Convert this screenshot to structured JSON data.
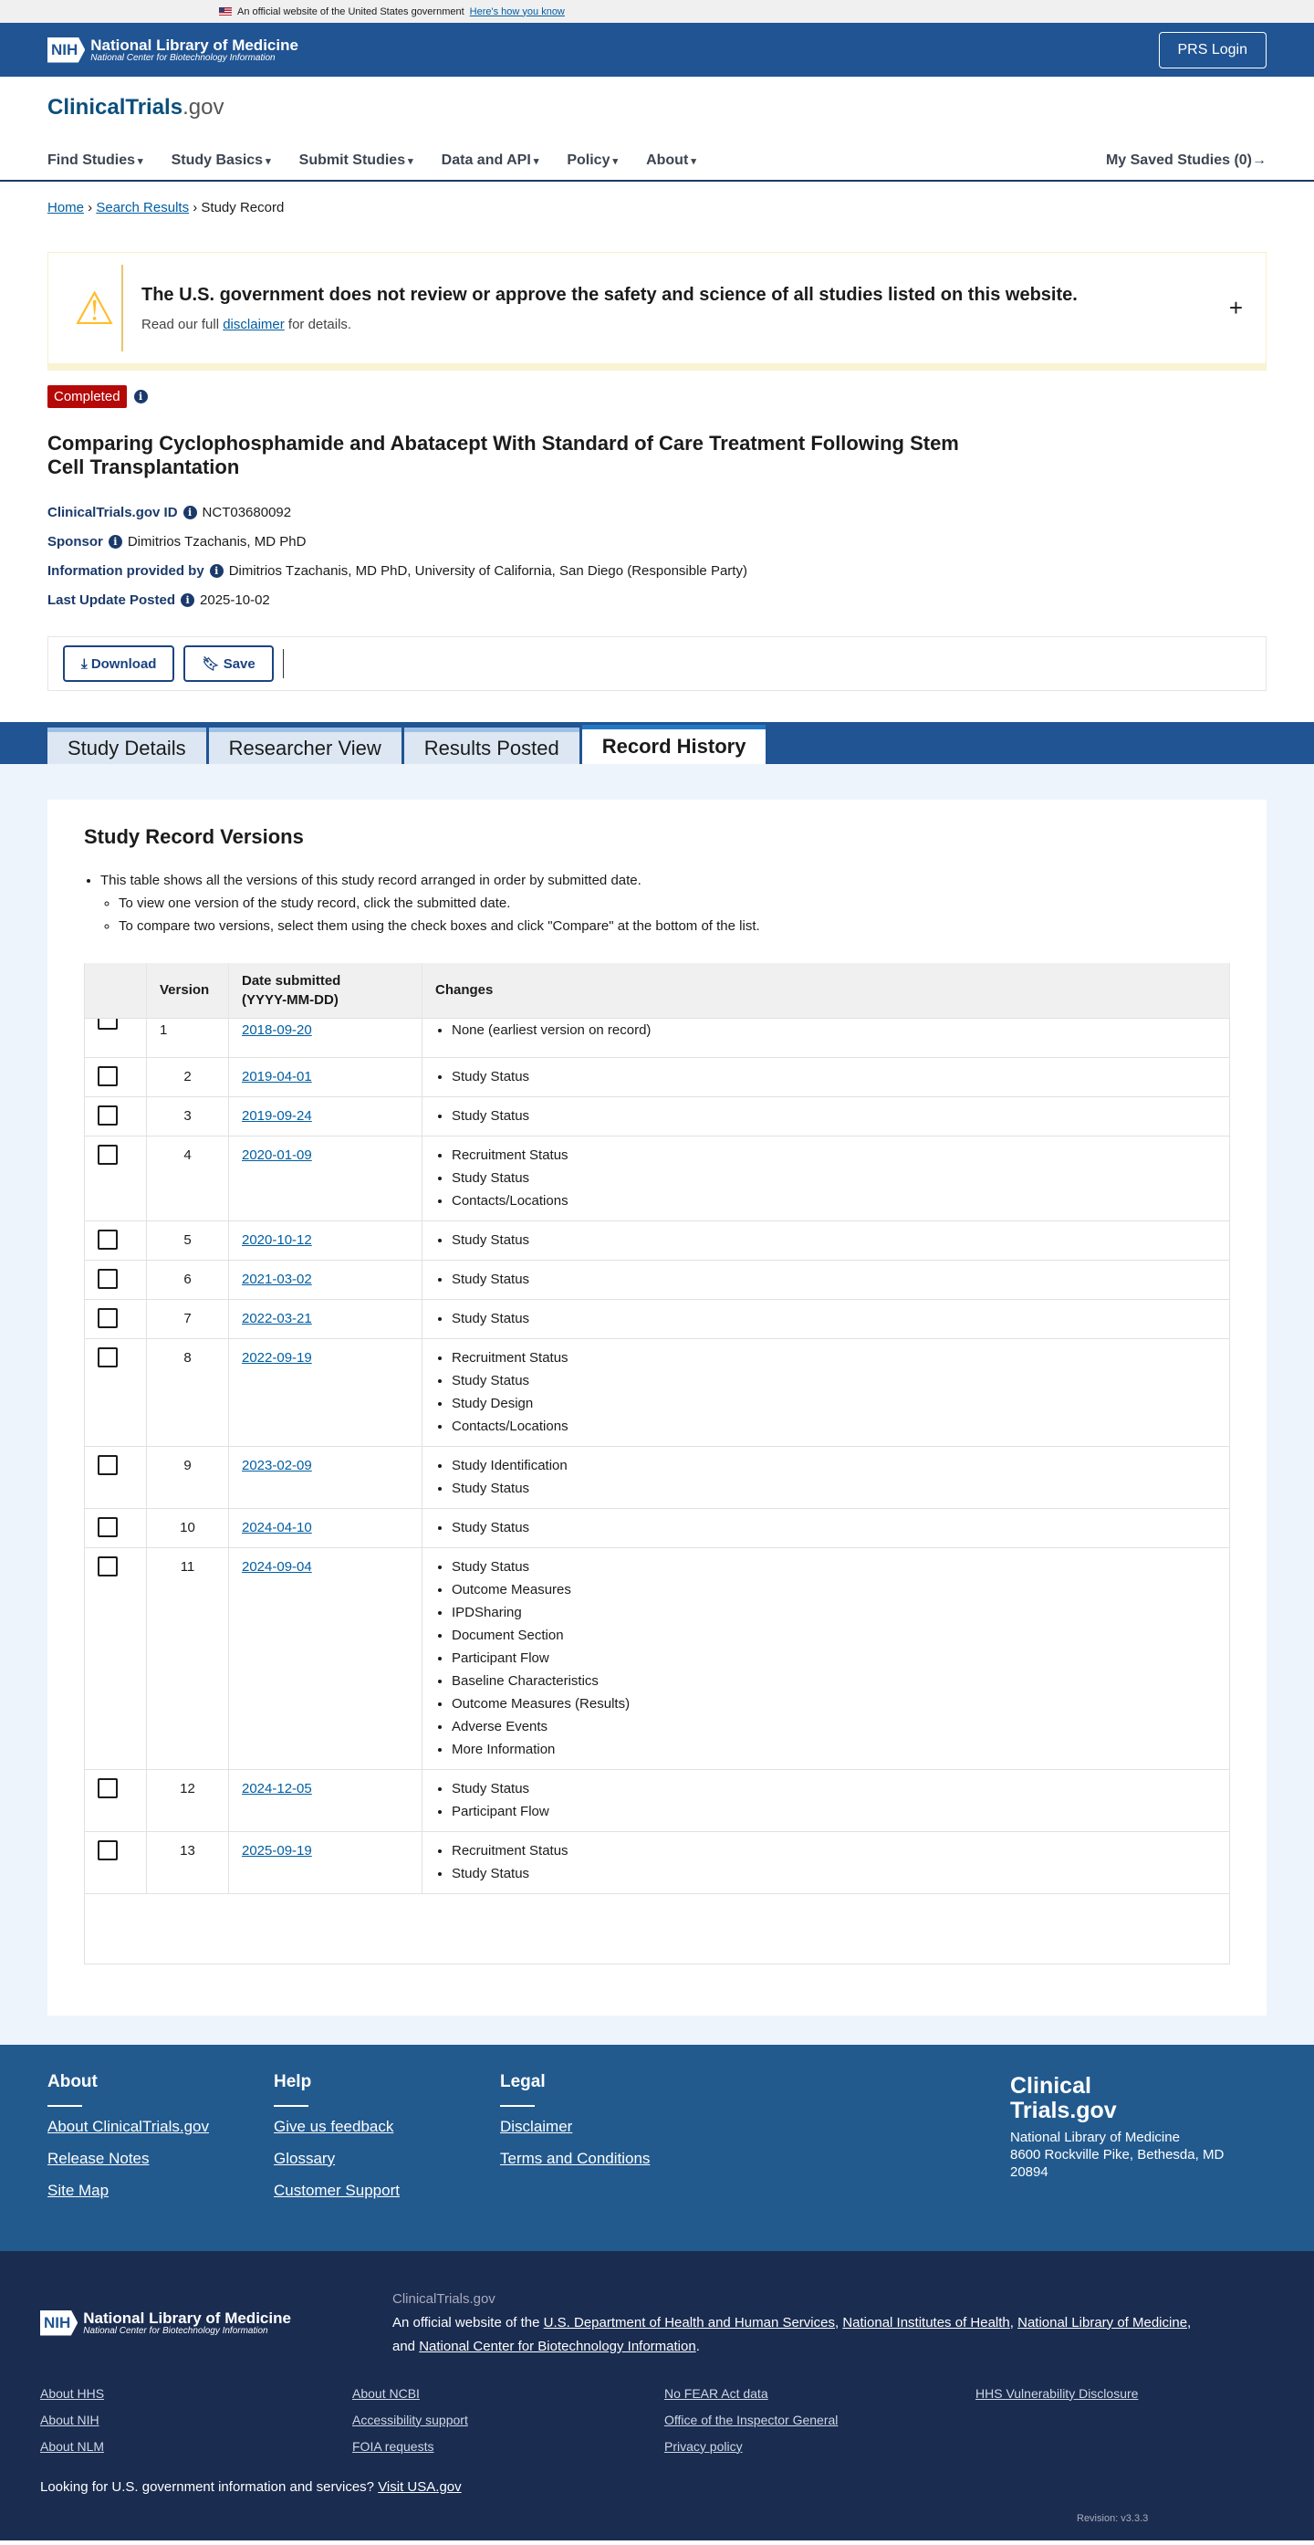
{
  "gov_banner": {
    "text": "An official website of the United States government",
    "link": "Here's how you know"
  },
  "header": {
    "nih_abbr": "NIH",
    "org": "National Library of Medicine",
    "suborg": "National Center for Biotechnology Information",
    "login": "PRS Login"
  },
  "brand": {
    "name": "ClinicalTrials",
    "suffix": ".gov"
  },
  "nav": {
    "items": [
      "Find Studies",
      "Study Basics",
      "Submit Studies",
      "Data and API",
      "Policy",
      "About"
    ],
    "saved": "My Saved Studies (0)→"
  },
  "breadcrumb": [
    "Home",
    "Search Results",
    "Study Record"
  ],
  "disclaimer": {
    "title": "The U.S. government does not review or approve the safety and science of all studies listed on this website.",
    "pre": "Read our full ",
    "link": "disclaimer",
    "post": " for details."
  },
  "study": {
    "status": "Completed",
    "status_color": "#b50909",
    "title": "Comparing Cyclophosphamide and Abatacept With Standard of Care Treatment Following Stem Cell Transplantation",
    "meta": [
      {
        "label": "ClinicalTrials.gov ID",
        "value": "NCT03680092"
      },
      {
        "label": "Sponsor",
        "value": "Dimitrios Tzachanis, MD PhD"
      },
      {
        "label": "Information provided by",
        "value": "Dimitrios Tzachanis, MD PhD, University of California, San Diego (Responsible Party)"
      },
      {
        "label": "Last Update Posted",
        "value": "2025-10-02"
      }
    ],
    "download": "Download",
    "save": "Save"
  },
  "tabs": [
    {
      "label": "Study Details"
    },
    {
      "label": "Researcher View"
    },
    {
      "label": "Results Posted"
    },
    {
      "label": "Record History",
      "active": true
    }
  ],
  "history": {
    "title": "Study Record Versions",
    "intro": "This table shows all the versions of this study record arranged in order by submitted date.",
    "sub": [
      "To view one version of the study record, click the submitted date.",
      "To compare two versions, select them using the check boxes and click \"Compare\" at the bottom of the list."
    ],
    "columns": [
      "",
      "Version",
      "Date submitted",
      "(YYYY-MM-DD)",
      "Changes"
    ],
    "rows": [
      {
        "version": "1",
        "date": "2018-09-20",
        "changes": [
          "None (earliest version on record)"
        ]
      },
      {
        "version": "2",
        "date": "2019-04-01",
        "changes": [
          "Study Status"
        ]
      },
      {
        "version": "3",
        "date": "2019-09-24",
        "changes": [
          "Study Status"
        ]
      },
      {
        "version": "4",
        "date": "2020-01-09",
        "changes": [
          "Recruitment Status",
          "Study Status",
          "Contacts/Locations"
        ]
      },
      {
        "version": "5",
        "date": "2020-10-12",
        "changes": [
          "Study Status"
        ]
      },
      {
        "version": "6",
        "date": "2021-03-02",
        "changes": [
          "Study Status"
        ]
      },
      {
        "version": "7",
        "date": "2022-03-21",
        "changes": [
          "Study Status"
        ]
      },
      {
        "version": "8",
        "date": "2022-09-19",
        "changes": [
          "Recruitment Status",
          "Study Status",
          "Study Design",
          "Contacts/Locations"
        ]
      },
      {
        "version": "9",
        "date": "2023-02-09",
        "changes": [
          "Study Identification",
          "Study Status"
        ]
      },
      {
        "version": "10",
        "date": "2024-04-10",
        "changes": [
          "Study Status"
        ]
      },
      {
        "version": "11",
        "date": "2024-09-04",
        "changes": [
          "Study Status",
          "Outcome Measures",
          "IPDSharing",
          "Document Section",
          "Participant Flow",
          "Baseline Characteristics",
          "Outcome Measures (Results)",
          "Adverse Events",
          "More Information"
        ]
      },
      {
        "version": "12",
        "date": "2024-12-05",
        "changes": [
          "Study Status",
          "Participant Flow"
        ]
      },
      {
        "version": "13",
        "date": "2025-09-19",
        "changes": [
          "Recruitment Status",
          "Study Status"
        ]
      }
    ]
  },
  "footer": {
    "columns": [
      {
        "title": "About",
        "links": [
          "About ClinicalTrials.gov",
          "Release Notes",
          "Site Map"
        ]
      },
      {
        "title": "Help",
        "links": [
          "Give us feedback",
          "Glossary",
          "Customer Support"
        ]
      },
      {
        "title": "Legal",
        "links": [
          "Disclaimer",
          "Terms and Conditions"
        ]
      }
    ],
    "brand1": "Clinical",
    "brand2": "Trials.gov",
    "addr1": "National Library of Medicine",
    "addr2": "8600 Rockville Pike, Bethesda, MD 20894",
    "site": "ClinicalTrials.gov",
    "official": "An official website of the ",
    "agencies": [
      "U.S. Department of Health and Human Services",
      "National Institutes of Health",
      "National Library of Medicine",
      "National Center for Biotechnology Information"
    ],
    "links": [
      "About HHS",
      "About NCBI",
      "No FEAR Act data",
      "HHS Vulnerability Disclosure",
      "About NIH",
      "Accessibility support",
      "Office of the Inspector General",
      "",
      "About NLM",
      "FOIA requests",
      "Privacy policy",
      ""
    ],
    "usa_text": "Looking for U.S. government information and services?",
    "usa_link": "Visit USA.gov",
    "revision": "Revision: v3.3.3"
  }
}
